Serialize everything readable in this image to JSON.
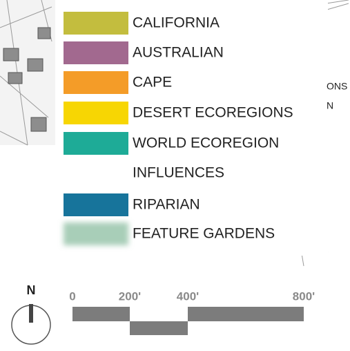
{
  "legend": {
    "items": [
      {
        "label": "CALIFORNIA",
        "color": "#c3bd3e"
      },
      {
        "label": "AUSTRALIAN",
        "color": "#a2698f"
      },
      {
        "label": "CAPE",
        "color": "#f49c28"
      },
      {
        "label": "DESERT ECOREGIONS",
        "color": "#f7d603"
      },
      {
        "label": [
          "WORLD ECOREGION",
          "INFLUENCES"
        ],
        "color": "#1eab97"
      },
      {
        "label": "RIPARIAN",
        "color": "#17749b"
      },
      {
        "label": "FEATURE GARDENS",
        "color": "#a8ceb8"
      }
    ]
  },
  "north": {
    "label": "N"
  },
  "scale_bar": {
    "labels": [
      "0",
      "200'",
      "400'",
      "800'"
    ]
  },
  "background_labels": [
    "ONS",
    "N"
  ]
}
